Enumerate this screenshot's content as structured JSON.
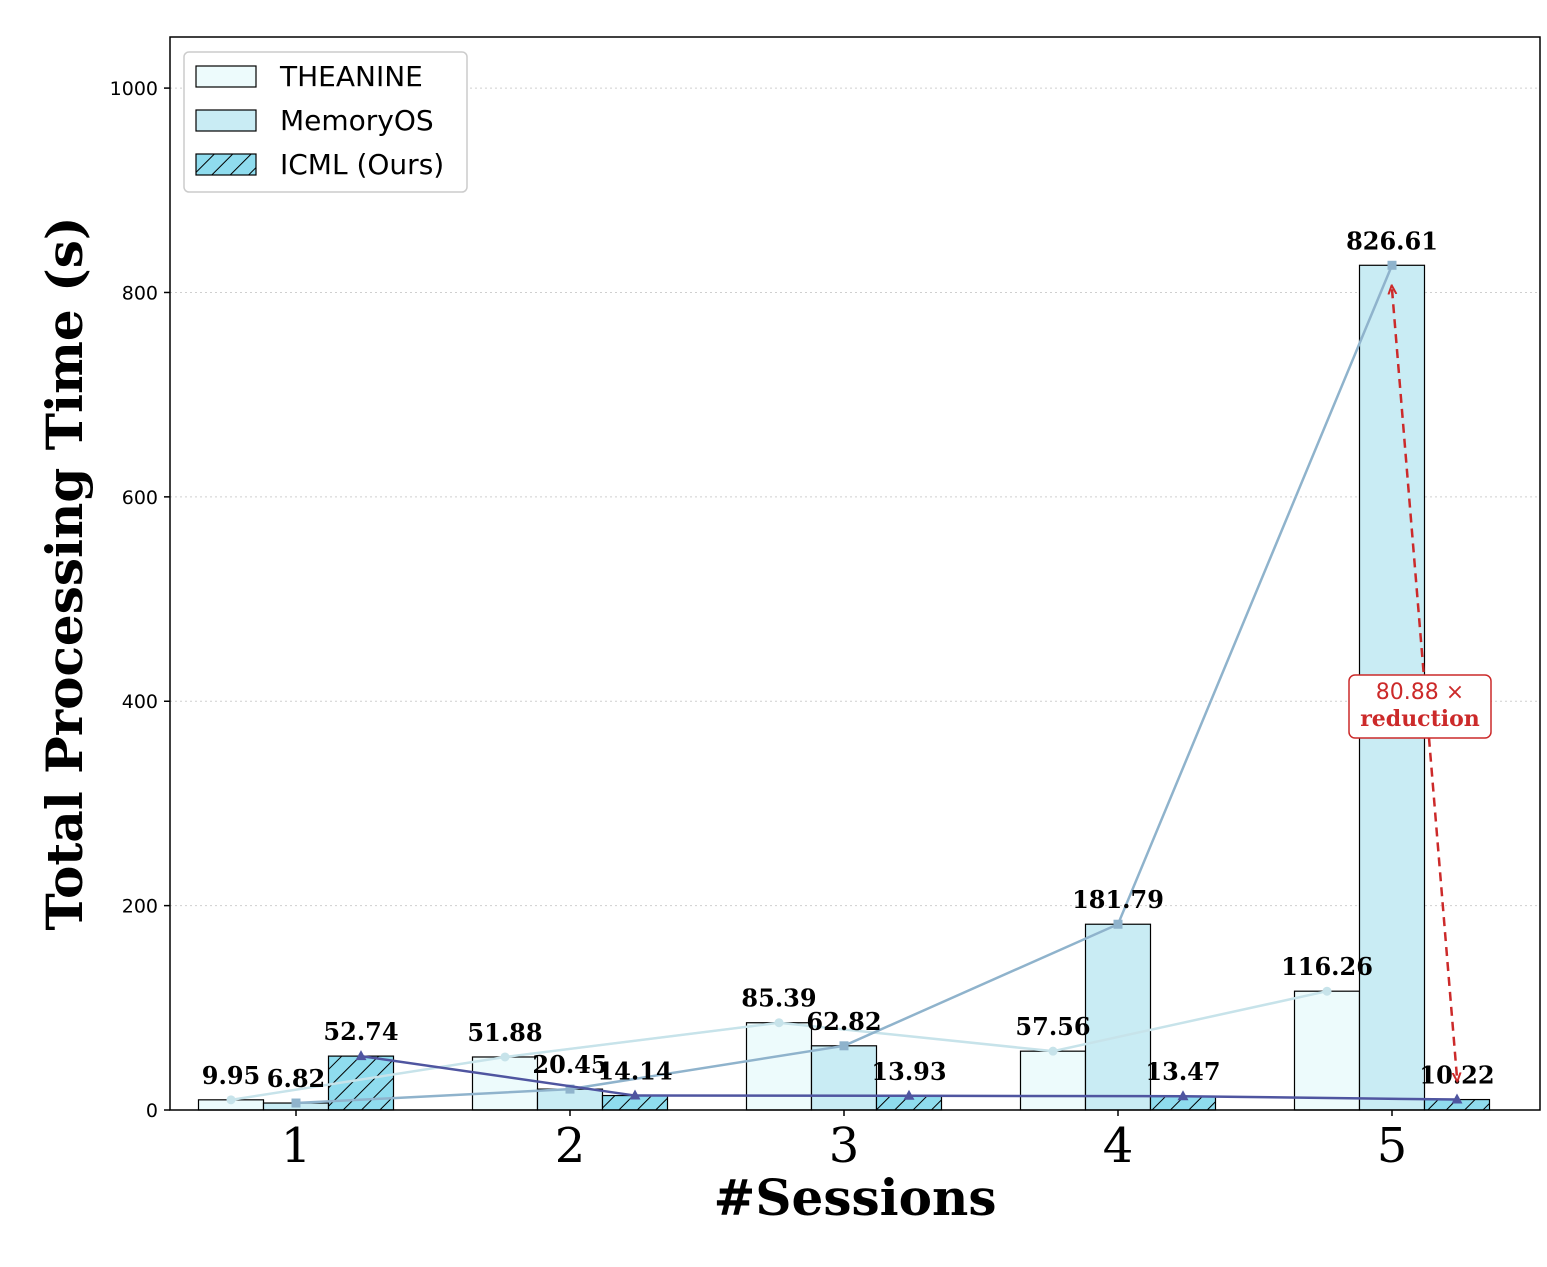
{
  "chart_data": {
    "type": "bar",
    "title": "",
    "xlabel": "#Sessions",
    "ylabel": "Total Processing Time (s)",
    "categories": [
      "1",
      "2",
      "3",
      "4",
      "5"
    ],
    "ylim": [
      0,
      1050
    ],
    "yticks": [
      0,
      200,
      400,
      600,
      800,
      1000
    ],
    "grid": "horizontal dotted",
    "legend_position": "top-left",
    "series": [
      {
        "name": "THEANINE",
        "values": [
          9.95,
          51.88,
          85.39,
          57.56,
          116.26
        ],
        "labels": [
          "9.95",
          "51.88",
          "85.39",
          "57.56",
          "116.26"
        ],
        "fill": "#edfbfc",
        "line": "#c7e3ea",
        "marker": "circle",
        "hatch": false
      },
      {
        "name": "MemoryOS",
        "values": [
          6.82,
          20.45,
          62.82,
          181.79,
          826.61
        ],
        "labels": [
          "6.82",
          "20.45",
          "62.82",
          "181.79",
          "826.61"
        ],
        "fill": "#c9ecf4",
        "line": "#8fb3cc",
        "marker": "square",
        "hatch": false
      },
      {
        "name": "ICML (Ours)",
        "values": [
          52.74,
          14.14,
          13.93,
          13.47,
          10.22
        ],
        "labels": [
          "52.74",
          "14.14",
          "13.93",
          "13.47",
          "10.22"
        ],
        "fill": "#8fdcee",
        "line": "#4f55a0",
        "marker": "triangle",
        "hatch": true
      }
    ],
    "annotation": {
      "line1": "80.88 ×",
      "line2": "reduction",
      "color": "#cc2a2a",
      "from_value": 826.61,
      "to_value": 10.22,
      "category": "5"
    }
  }
}
